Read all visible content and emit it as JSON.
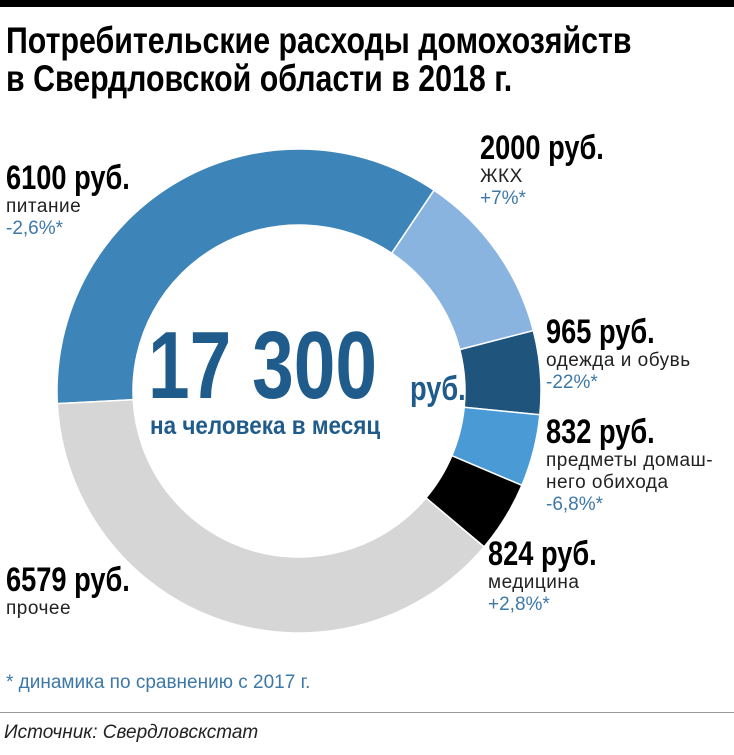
{
  "title": "Потребительские расходы домохозяйств в Свердловской области в 2018 г.",
  "chart_data": {
    "type": "pie",
    "variant": "donut",
    "title": "Потребительские расходы домохозяйств в Свердловской области в 2018 г.",
    "total": {
      "value": "17 300",
      "unit": "руб.",
      "caption": "на человека в месяц"
    },
    "slices": [
      {
        "value": 6100,
        "value_label": "6100 руб.",
        "category": "питание",
        "change": "-2,6%*",
        "color": "#3d85b8"
      },
      {
        "value": 2000,
        "value_label": "2000 руб.",
        "category": "ЖКХ",
        "change": "+7%*",
        "color": "#8ab4e0"
      },
      {
        "value": 965,
        "value_label": "965 руб.",
        "category": "одежда и обувь",
        "change": "-22%*",
        "color": "#1f547d"
      },
      {
        "value": 832,
        "value_label": "832 руб.",
        "category": "предметы домаш-\nнего обихода",
        "category_lines": [
          "предметы домаш-",
          "него обихода"
        ],
        "change": "-6,8%*",
        "color": "#4a9ad6"
      },
      {
        "value": 824,
        "value_label": "824 руб.",
        "category": "медицина",
        "change": "+2,8%*",
        "color": "#000000"
      },
      {
        "value": 6579,
        "value_label": "6579 руб.",
        "category": "прочее",
        "change": "",
        "color": "#d6d6d6"
      }
    ]
  },
  "footnote": "* динамика по сравнению с 2017 г.",
  "source": "Источник: Свердловскстат"
}
